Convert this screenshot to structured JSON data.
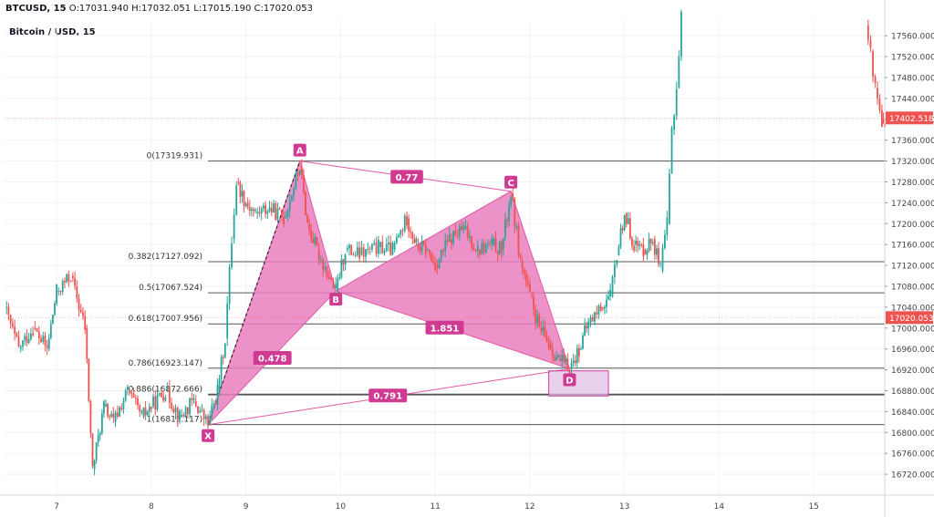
{
  "header": {
    "symbol": "BTCUSD, 15",
    "open_label": "O:",
    "open": "17031.940",
    "high_label": "H:",
    "high": "17032.051",
    "low_label": "L:",
    "low": "17015.190",
    "close_label": "C:",
    "close": "17020.053"
  },
  "subtitle": "Bitcoin / USD, 15",
  "colors": {
    "pattern_fill": "#e97fbf",
    "pattern_line": "#e05aa5",
    "label_bg": "#d03a92",
    "price_badge": "#ef5350",
    "candle": "#26a69a",
    "fib_line": "#555555",
    "axis_text": "#444444"
  },
  "chart_data": {
    "type": "candlestick",
    "y_axis": {
      "min": 16680,
      "max": 17590,
      "ticks": [
        "17560.000",
        "17520.000",
        "17480.000",
        "17440.000",
        "17400.000",
        "17360.000",
        "17320.000",
        "17280.000",
        "17240.000",
        "17200.000",
        "17160.000",
        "17120.000",
        "17080.000",
        "17040.000",
        "17000.000",
        "16960.000",
        "16920.000",
        "16880.000",
        "16840.000",
        "16800.000",
        "16760.000",
        "16720.000"
      ]
    },
    "x_axis": {
      "min": 6.45,
      "max": 15.75,
      "ticks": [
        {
          "day": 7,
          "label": "7"
        },
        {
          "day": 8,
          "label": "8"
        },
        {
          "day": 9,
          "label": "9"
        },
        {
          "day": 10,
          "label": "10"
        },
        {
          "day": 11,
          "label": "11"
        },
        {
          "day": 12,
          "label": "12"
        },
        {
          "day": 13,
          "label": "13"
        },
        {
          "day": 14,
          "label": "14"
        },
        {
          "day": 15,
          "label": "15"
        }
      ]
    },
    "price_badges": [
      {
        "label": "17402.518",
        "value": 17402.518
      },
      {
        "label": "17020.053",
        "value": 17020.053
      }
    ],
    "fib_levels": [
      {
        "label": "0(17319.931)",
        "value": 17319.931
      },
      {
        "label": "0.382(17127.092)",
        "value": 17127.092
      },
      {
        "label": "0.5(17067.524)",
        "value": 17067.524
      },
      {
        "label": "0.618(17007.956)",
        "value": 17007.956
      },
      {
        "label": "0.786(16923.147)",
        "value": 16923.147
      },
      {
        "label": "0.886(16872.666)",
        "value": 16872.666
      },
      {
        "label": "1(16815.117)",
        "value": 16815.117
      }
    ],
    "pattern_points": [
      {
        "name": "X",
        "day": 8.6,
        "value": 16815
      },
      {
        "name": "A",
        "day": 9.57,
        "value": 17320
      },
      {
        "name": "B",
        "day": 9.95,
        "value": 17071
      },
      {
        "name": "C",
        "day": 11.8,
        "value": 17262
      },
      {
        "name": "D",
        "day": 12.42,
        "value": 16922
      }
    ],
    "ratios": [
      {
        "label": "0.77",
        "day": 10.7,
        "value": 17289
      },
      {
        "label": "0.478",
        "day": 9.28,
        "value": 16942
      },
      {
        "label": "1.851",
        "day": 11.1,
        "value": 17000
      },
      {
        "label": "0.791",
        "day": 10.5,
        "value": 16870
      }
    ],
    "prz_box": {
      "day_start": 12.2,
      "day_end": 12.83,
      "value_top": 16918,
      "value_bottom": 16870
    },
    "price_path": [
      [
        6.45,
        17040
      ],
      [
        6.6,
        16960
      ],
      [
        6.75,
        17000
      ],
      [
        6.9,
        16960
      ],
      [
        7.0,
        17070
      ],
      [
        7.15,
        17100
      ],
      [
        7.3,
        17000
      ],
      [
        7.38,
        16730
      ],
      [
        7.5,
        16850
      ],
      [
        7.6,
        16820
      ],
      [
        7.75,
        16880
      ],
      [
        7.9,
        16830
      ],
      [
        8.0,
        16850
      ],
      [
        8.15,
        16880
      ],
      [
        8.3,
        16830
      ],
      [
        8.45,
        16860
      ],
      [
        8.6,
        16815
      ],
      [
        8.7,
        16880
      ],
      [
        8.78,
        16980
      ],
      [
        8.85,
        17170
      ],
      [
        8.9,
        17280
      ],
      [
        9.0,
        17240
      ],
      [
        9.1,
        17220
      ],
      [
        9.25,
        17230
      ],
      [
        9.4,
        17210
      ],
      [
        9.57,
        17310
      ],
      [
        9.65,
        17200
      ],
      [
        9.75,
        17150
      ],
      [
        9.9,
        17090
      ],
      [
        9.95,
        17072
      ],
      [
        10.05,
        17150
      ],
      [
        10.2,
        17140
      ],
      [
        10.4,
        17155
      ],
      [
        10.55,
        17150
      ],
      [
        10.7,
        17210
      ],
      [
        10.8,
        17160
      ],
      [
        10.9,
        17150
      ],
      [
        11.0,
        17120
      ],
      [
        11.15,
        17170
      ],
      [
        11.3,
        17190
      ],
      [
        11.45,
        17150
      ],
      [
        11.6,
        17160
      ],
      [
        11.7,
        17150
      ],
      [
        11.8,
        17258
      ],
      [
        11.9,
        17130
      ],
      [
        12.0,
        17060
      ],
      [
        12.1,
        17000
      ],
      [
        12.2,
        16970
      ],
      [
        12.3,
        16940
      ],
      [
        12.42,
        16922
      ],
      [
        12.52,
        16960
      ],
      [
        12.62,
        17010
      ],
      [
        12.75,
        17040
      ],
      [
        12.85,
        17060
      ],
      [
        12.92,
        17140
      ],
      [
        13.0,
        17220
      ],
      [
        13.1,
        17160
      ],
      [
        13.2,
        17150
      ],
      [
        13.3,
        17170
      ],
      [
        13.38,
        17110
      ],
      [
        13.45,
        17200
      ],
      [
        13.5,
        17380
      ],
      [
        13.55,
        17460
      ],
      [
        13.6,
        17600
      ]
    ],
    "price_path_2": [
      [
        15.55,
        17580
      ],
      [
        15.6,
        17530
      ],
      [
        15.65,
        17460
      ],
      [
        15.72,
        17400
      ],
      [
        15.75,
        17370
      ]
    ]
  }
}
